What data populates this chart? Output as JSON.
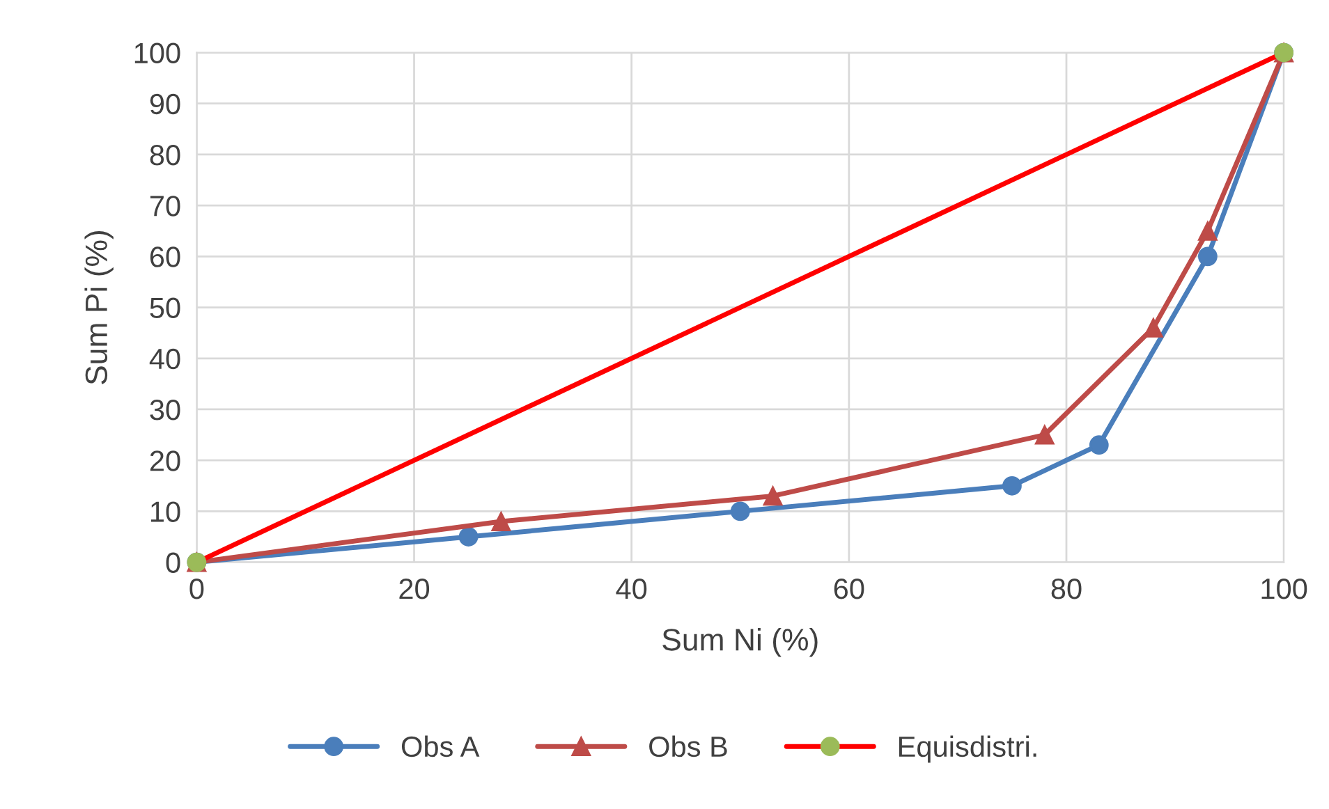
{
  "chart_data": {
    "type": "line",
    "xlabel": "Sum Ni (%)",
    "ylabel": "Sum Pi (%)",
    "xlim": [
      0,
      100
    ],
    "xticks": [
      0,
      20,
      40,
      60,
      80,
      100
    ],
    "ylim": [
      0,
      100
    ],
    "yticks": [
      0,
      10,
      20,
      30,
      40,
      50,
      60,
      70,
      80,
      90,
      100
    ],
    "grid": true,
    "legend": "bottom",
    "line_style": "solid",
    "series": [
      {
        "name": "Obs A",
        "color": "#4a7ebb",
        "marker": "circle",
        "x": [
          0,
          25,
          50,
          75,
          83,
          93,
          100
        ],
        "values": [
          0,
          5,
          10,
          15,
          23,
          60,
          100
        ]
      },
      {
        "name": "Obs B",
        "color": "#be4b48",
        "marker": "triangle",
        "x": [
          0,
          28,
          53,
          78,
          88,
          93,
          100
        ],
        "values": [
          0,
          8,
          13,
          25,
          46,
          65,
          100
        ]
      },
      {
        "name": "Equisdistri.",
        "color": "#ff0000",
        "marker": "circle",
        "colors": [
          "#9bbb59",
          "#9bbb59"
        ],
        "x": [
          0,
          100
        ],
        "values": [
          0,
          100
        ]
      }
    ]
  }
}
